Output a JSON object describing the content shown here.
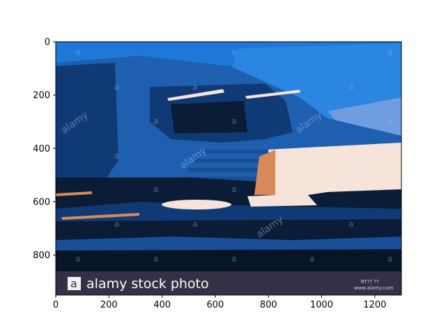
{
  "chart_data": {
    "type": "image",
    "xlim": [
      0,
      1300
    ],
    "ylim": [
      950,
      0
    ],
    "x_ticks": [
      0,
      200,
      400,
      600,
      800,
      1000,
      1200
    ],
    "y_ticks": [
      0,
      200,
      400,
      600,
      800
    ],
    "x_tick_labels": [
      "0",
      "200",
      "400",
      "600",
      "800",
      "1000",
      "1200"
    ],
    "y_tick_labels": [
      "0",
      "200",
      "400",
      "600",
      "800"
    ],
    "grid": false,
    "image_content": {
      "watermark_word": "alamy",
      "watermark_letter": "a",
      "banner_text": "alamy stock photo",
      "banner_logo_letter": "a",
      "banner_small_text": [
        "RT?? ??",
        "www.alamy.com"
      ]
    },
    "colors": {
      "sky_blue": "#1f78d8",
      "mid_blue": "#1e5fb0",
      "dark_blue": "#103a75",
      "navy": "#0a1c36",
      "cream": "#f6e4da",
      "orange": "#d88a5a",
      "banner": "#343046"
    }
  }
}
